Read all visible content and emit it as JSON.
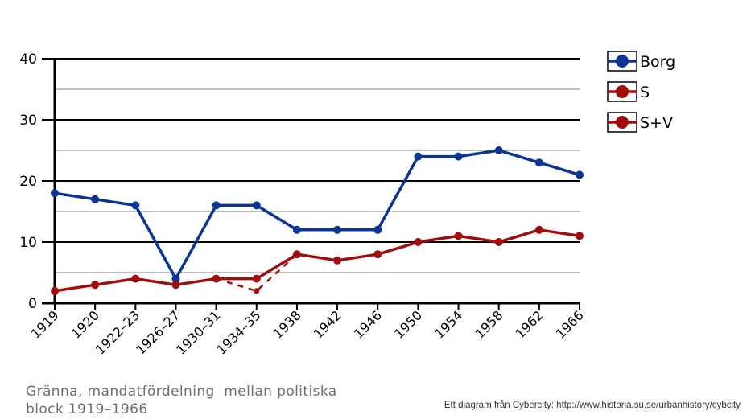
{
  "chart_data": {
    "type": "line",
    "categories": [
      "1919",
      "1920",
      "1922–23",
      "1926–27",
      "1930–31",
      "1934–35",
      "1938",
      "1942",
      "1946",
      "1950",
      "1954",
      "1958",
      "1962",
      "1966"
    ],
    "series": [
      {
        "name": "Borg",
        "color": "#0a3594",
        "dashed": false,
        "values": [
          18,
          17,
          16,
          4,
          16,
          16,
          12,
          12,
          12,
          24,
          24,
          25,
          23,
          21
        ]
      },
      {
        "name": "S",
        "color": "#a00d0d",
        "dashed": true,
        "values": [
          null,
          null,
          null,
          null,
          4,
          2,
          8,
          null,
          null,
          null,
          null,
          null,
          null,
          null
        ]
      },
      {
        "name": "S+V",
        "color": "#a00d0d",
        "dashed": false,
        "values": [
          2,
          3,
          4,
          3,
          4,
          4,
          8,
          7,
          8,
          10,
          11,
          10,
          12,
          11
        ]
      }
    ],
    "ylim": [
      0,
      40
    ],
    "yticks": [
      0,
      10,
      20,
      30,
      40
    ],
    "minor_gridlines": [
      5,
      15,
      25,
      35
    ],
    "grid": true,
    "legend_position": "right",
    "title": "",
    "xlabel": "",
    "ylabel": ""
  },
  "caption": {
    "line1": "Gränna, mandatfördelning  mellan politiska",
    "line2": "block 1919–1966"
  },
  "credit": "Ett diagram från Cybercity: http://www.historia.su.se/urbanhistory/cybcity"
}
